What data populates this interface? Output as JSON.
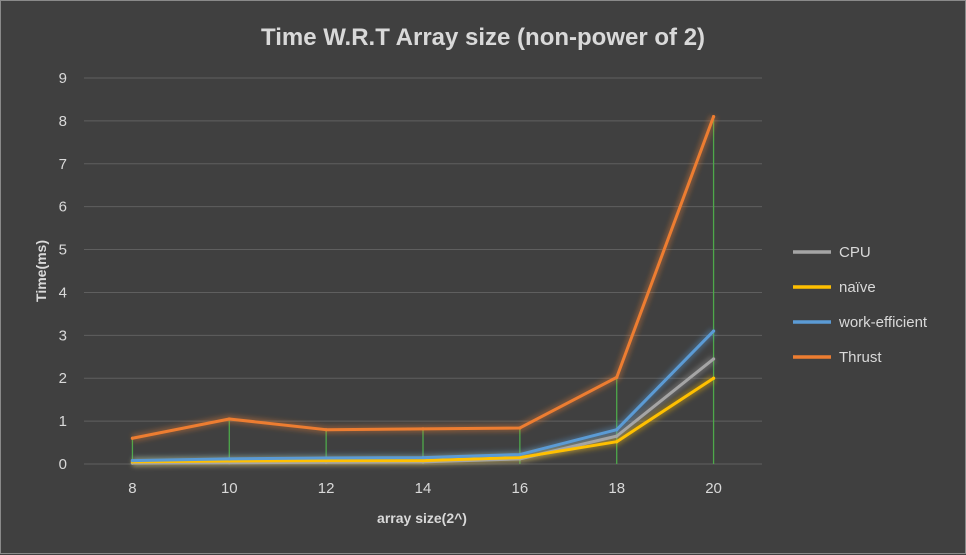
{
  "chart_data": {
    "type": "line",
    "title": "Time W.R.T Array size (non-power of 2)",
    "xlabel": "array size(2^)",
    "ylabel": "Time(ms)",
    "categories": [
      "8",
      "10",
      "12",
      "14",
      "16",
      "18",
      "20"
    ],
    "ylim": [
      0,
      9
    ],
    "yticks": [
      "0",
      "1",
      "2",
      "3",
      "4",
      "5",
      "6",
      "7",
      "8",
      "9"
    ],
    "grid": true,
    "drop_lines": true,
    "legend_position": "right",
    "series": [
      {
        "name": "CPU",
        "color": "#a5a5a5",
        "values": [
          0.02,
          0.03,
          0.04,
          0.05,
          0.12,
          0.65,
          2.45
        ]
      },
      {
        "name": "naïve",
        "color": "#ffc000",
        "values": [
          0.05,
          0.07,
          0.08,
          0.08,
          0.15,
          0.52,
          2.0
        ]
      },
      {
        "name": "work-efficient",
        "color": "#5b9bd5",
        "values": [
          0.08,
          0.12,
          0.14,
          0.15,
          0.22,
          0.8,
          3.1
        ]
      },
      {
        "name": "Thrust",
        "color": "#ed7d31",
        "values": [
          0.6,
          1.05,
          0.8,
          0.82,
          0.84,
          2.02,
          8.1
        ]
      }
    ]
  }
}
